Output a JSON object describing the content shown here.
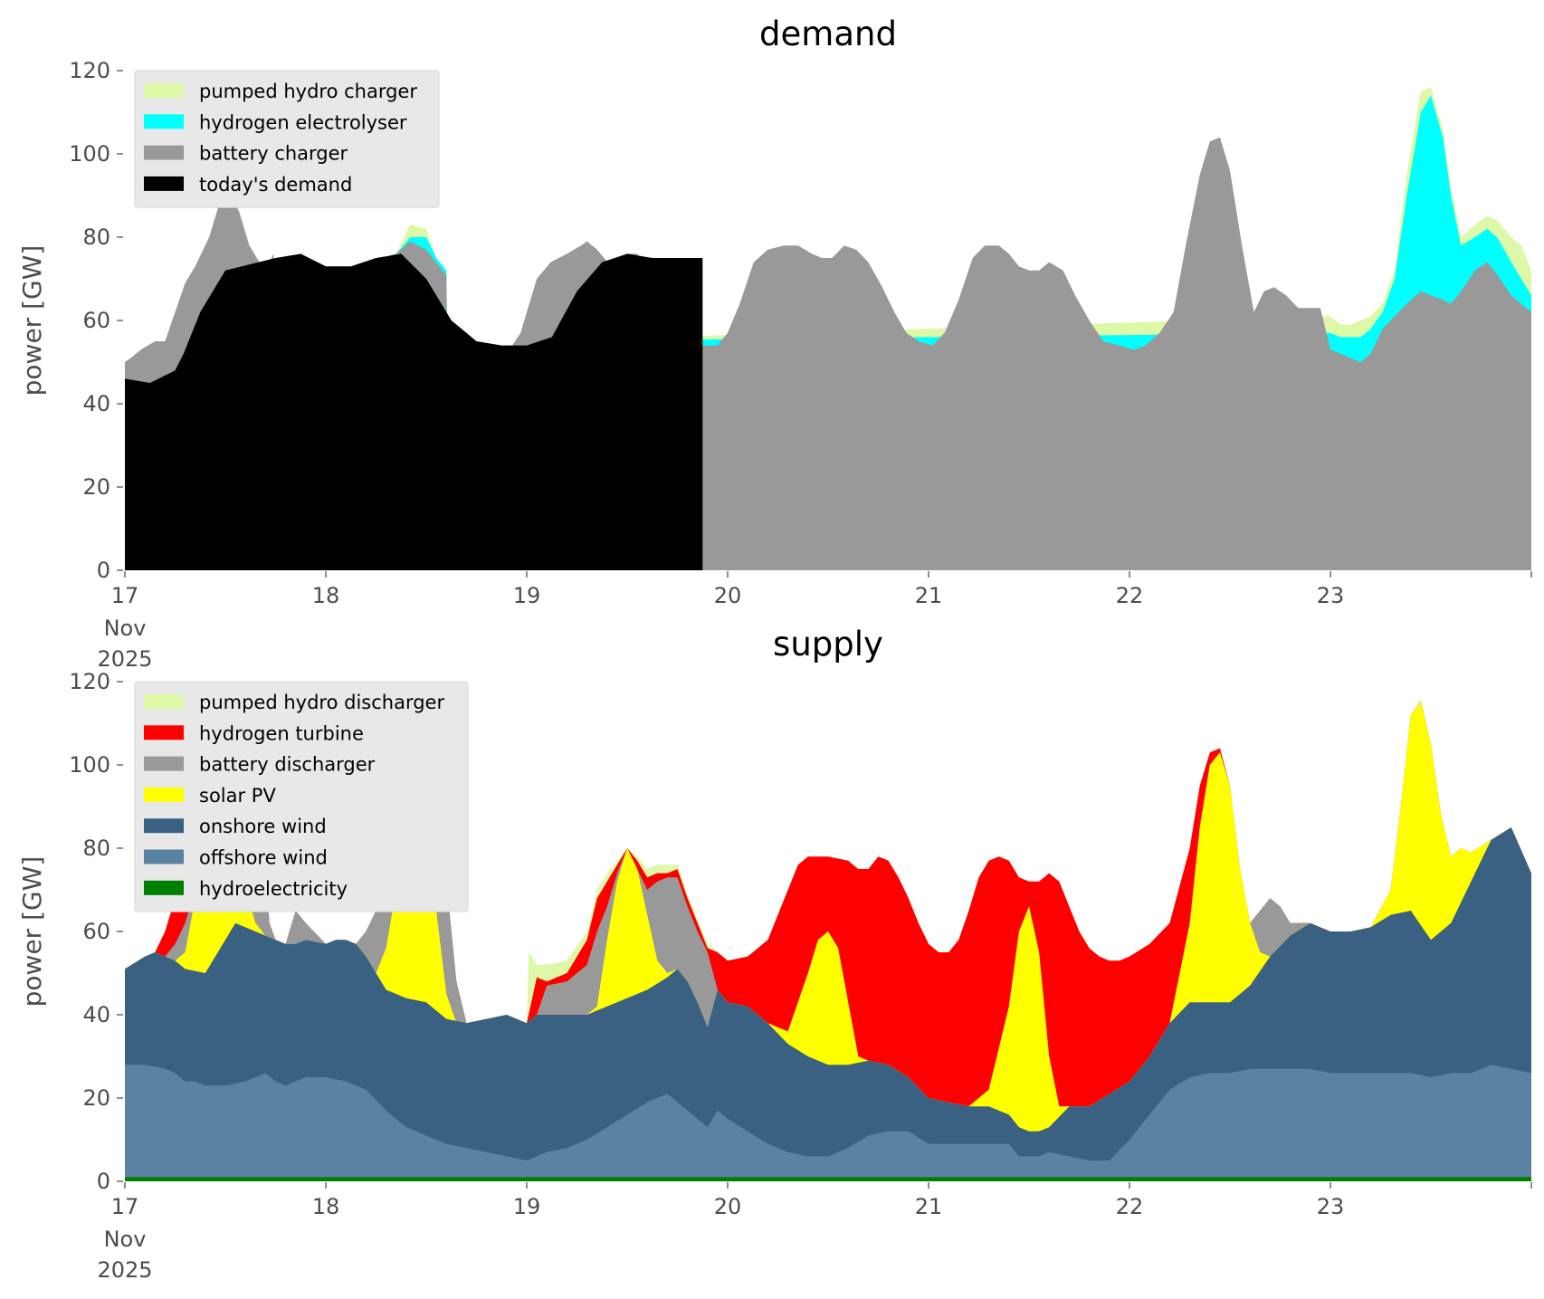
{
  "chart_data": [
    {
      "type": "area",
      "stacked": true,
      "title": "demand",
      "ylabel": "power [GW]",
      "xlabel": "",
      "ylim": [
        0,
        120
      ],
      "yticks": [
        0,
        20,
        40,
        60,
        80,
        100,
        120
      ],
      "xlim": [
        "2025-11-17 00:00",
        "2025-11-24 00:00"
      ],
      "xticks": [
        {
          "x": "2025-11-17",
          "label": "17"
        },
        {
          "x": "2025-11-18",
          "label": "18"
        },
        {
          "x": "2025-11-19",
          "label": "19"
        },
        {
          "x": "2025-11-20",
          "label": "20"
        },
        {
          "x": "2025-11-21",
          "label": "21"
        },
        {
          "x": "2025-11-22",
          "label": "22"
        },
        {
          "x": "2025-11-23",
          "label": "23"
        }
      ],
      "date_sublabels": [
        "Nov",
        "2025"
      ],
      "grid": false,
      "legend_position": "top-left",
      "series_order_bottom_to_top": [
        "today's demand",
        "battery charger",
        "hydrogen electrolyser",
        "pumped hydro charger"
      ],
      "legend_order": [
        "pumped hydro charger",
        "hydrogen electrolyser",
        "battery charger",
        "today's demand"
      ],
      "series": [
        {
          "name": "today's demand",
          "color": "#000000",
          "points": [
            [
              "2025-11-17 00:00",
              46
            ],
            [
              "2025-11-17 03:00",
              45
            ],
            [
              "2025-11-17 06:00",
              48
            ],
            [
              "2025-11-17 07:00",
              52
            ],
            [
              "2025-11-17 09:00",
              62
            ],
            [
              "2025-11-17 12:00",
              72
            ],
            [
              "2025-11-17 18:00",
              75
            ],
            [
              "2025-11-17 21:00",
              76
            ],
            [
              "2025-11-17 24:00",
              73
            ],
            [
              "2025-11-18 03:00",
              73
            ],
            [
              "2025-11-18 06:00",
              75
            ],
            [
              "2025-11-18 09:00",
              76
            ],
            [
              "2025-11-18 12:00",
              70
            ],
            [
              "2025-11-18 15:00",
              60
            ],
            [
              "2025-11-18 18:00",
              55
            ],
            [
              "2025-11-18 21:00",
              54
            ],
            [
              "2025-11-19 00:00",
              54
            ],
            [
              "2025-11-19 03:00",
              56
            ],
            [
              "2025-11-19 06:00",
              67
            ],
            [
              "2025-11-19 09:00",
              74
            ],
            [
              "2025-11-19 12:00",
              76
            ],
            [
              "2025-11-19 15:00",
              75
            ],
            [
              "2025-11-19 18:00",
              75
            ],
            [
              "2025-11-19 21:00",
              75
            ]
          ]
        },
        {
          "name": "battery charger",
          "color": "#999999",
          "points": []
        },
        {
          "name": "hydrogen electrolyser",
          "color": "#00ffff",
          "points": []
        },
        {
          "name": "pumped hydro charger",
          "color": "#ddf8a6",
          "points": []
        }
      ]
    },
    {
      "type": "area",
      "stacked": true,
      "title": "supply",
      "ylabel": "power [GW]",
      "xlabel": "",
      "ylim": [
        0,
        120
      ],
      "yticks": [
        0,
        20,
        40,
        60,
        80,
        100,
        120
      ],
      "xlim": [
        "2025-11-17 00:00",
        "2025-11-24 00:00"
      ],
      "xticks": [
        {
          "x": "2025-11-17",
          "label": "17"
        },
        {
          "x": "2025-11-18",
          "label": "18"
        },
        {
          "x": "2025-11-19",
          "label": "19"
        },
        {
          "x": "2025-11-20",
          "label": "20"
        },
        {
          "x": "2025-11-21",
          "label": "21"
        },
        {
          "x": "2025-11-22",
          "label": "22"
        },
        {
          "x": "2025-11-23",
          "label": "23"
        }
      ],
      "date_sublabels": [
        "Nov",
        "2025"
      ],
      "grid": false,
      "legend_position": "top-left",
      "series_order_bottom_to_top": [
        "hydroelectricity",
        "offshore wind",
        "onshore wind",
        "solar PV",
        "battery discharger",
        "hydrogen turbine",
        "pumped hydro discharger"
      ],
      "legend_order": [
        "pumped hydro discharger",
        "hydrogen turbine",
        "battery discharger",
        "solar PV",
        "onshore wind",
        "offshore wind",
        "hydroelectricity"
      ],
      "series": [
        {
          "name": "hydroelectricity",
          "color": "#008000",
          "points": [
            [
              "2025-11-17 00:00",
              1
            ],
            [
              "2025-11-24 00:00",
              1
            ]
          ]
        },
        {
          "name": "offshore wind",
          "color": "#5b81a3",
          "points": []
        },
        {
          "name": "onshore wind",
          "color": "#3b6182",
          "points": []
        },
        {
          "name": "solar PV",
          "color": "#ffff00",
          "points": []
        },
        {
          "name": "battery discharger",
          "color": "#999999",
          "points": []
        },
        {
          "name": "hydrogen turbine",
          "color": "#ff0000",
          "points": []
        },
        {
          "name": "pumped hydro discharger",
          "color": "#ddf8a6",
          "points": []
        }
      ]
    }
  ]
}
